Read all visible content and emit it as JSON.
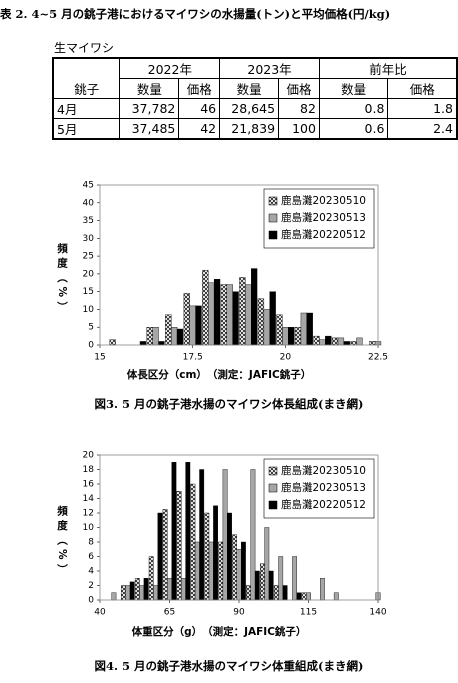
{
  "table": {
    "caption": "表 2. 4~5 月の銚子港におけるマイワシの水揚量(トン)と平均価格(円/kg)",
    "label": "生マイワシ",
    "corner": "銚子",
    "groups": [
      "2022年",
      "2023年",
      "前年比"
    ],
    "subheaders": [
      "数量",
      "価格",
      "数量",
      "価格",
      "数量",
      "価格"
    ],
    "rows": [
      [
        "4月",
        "37,782",
        "46",
        "28,645",
        "82",
        "0.8",
        "1.8"
      ],
      [
        "5月",
        "37,485",
        "42",
        "21,839",
        "100",
        "0.6",
        "2.4"
      ]
    ]
  },
  "chart_data": [
    {
      "type": "bar",
      "caption": "図3. 5 月の銚子港水揚のマイワシ体長組成(まき網)",
      "xlabel": "体長区分（cm）　（測定：JAFIC銚子）",
      "ylabel": "頻度（%）",
      "x": [
        15.5,
        16,
        16.5,
        17,
        17.5,
        18,
        18.5,
        19,
        19.5,
        20,
        20.5,
        21,
        21.5,
        22,
        22.5
      ],
      "series": [
        {
          "name": "鹿島灘20230510",
          "color": "#ffffff",
          "hatch": true,
          "values": [
            1.5,
            0,
            5,
            8.5,
            14.5,
            21,
            17,
            19,
            13,
            8.5,
            5,
            2.5,
            2,
            1,
            1
          ]
        },
        {
          "name": "鹿島灘20230513",
          "color": "#a6a6a6",
          "hatch": false,
          "values": [
            0,
            0,
            5,
            5,
            11,
            17.5,
            17,
            17,
            10,
            5,
            9,
            1.5,
            2,
            2,
            1
          ]
        },
        {
          "name": "鹿島灘20220512",
          "color": "#000000",
          "hatch": false,
          "values": [
            0,
            1,
            1,
            4.5,
            11,
            18.5,
            15,
            21.5,
            15,
            5,
            9,
            2.5,
            1,
            0,
            0
          ]
        }
      ],
      "xlim": [
        15,
        22.5
      ],
      "xticks": [
        15,
        17.5,
        20,
        22.5
      ],
      "ylim": [
        0,
        45
      ],
      "yticks": [
        0,
        5,
        10,
        15,
        20,
        25,
        30,
        35,
        40,
        45
      ],
      "legend": "upper-right"
    },
    {
      "type": "bar",
      "caption": "図4. 5 月の銚子港水揚のマイワシ体重組成(まき網)",
      "xlabel": "体重区分（g）　（測定：JAFIC銚子）",
      "ylabel": "頻度（%）",
      "x": [
        45,
        50,
        55,
        60,
        65,
        70,
        75,
        80,
        85,
        90,
        95,
        100,
        105,
        110,
        115,
        120,
        125,
        130,
        140
      ],
      "series": [
        {
          "name": "鹿島灘20230510",
          "color": "#ffffff",
          "hatch": true,
          "values": [
            0,
            2,
            3,
            6,
            12.5,
            15,
            16,
            12,
            8,
            9,
            2,
            5,
            2,
            0,
            1,
            0,
            0,
            0,
            0
          ]
        },
        {
          "name": "鹿島灘20230513",
          "color": "#a6a6a6",
          "hatch": false,
          "values": [
            1,
            2,
            2,
            2,
            3,
            3,
            8,
            8,
            18,
            7,
            18,
            10,
            6,
            6,
            1,
            3,
            1,
            0,
            1
          ]
        },
        {
          "name": "鹿島灘20220512",
          "color": "#000000",
          "hatch": false,
          "values": [
            0,
            2.5,
            3,
            12,
            19,
            19,
            18,
            13,
            12,
            8,
            4,
            4,
            2,
            1,
            0,
            0,
            0,
            0,
            0
          ]
        }
      ],
      "xlim": [
        40,
        140
      ],
      "xticks": [
        40,
        65,
        90,
        115,
        140
      ],
      "ylim": [
        0,
        20
      ],
      "yticks": [
        0,
        2,
        4,
        6,
        8,
        10,
        12,
        14,
        16,
        18,
        20
      ],
      "legend": "upper-right"
    }
  ]
}
